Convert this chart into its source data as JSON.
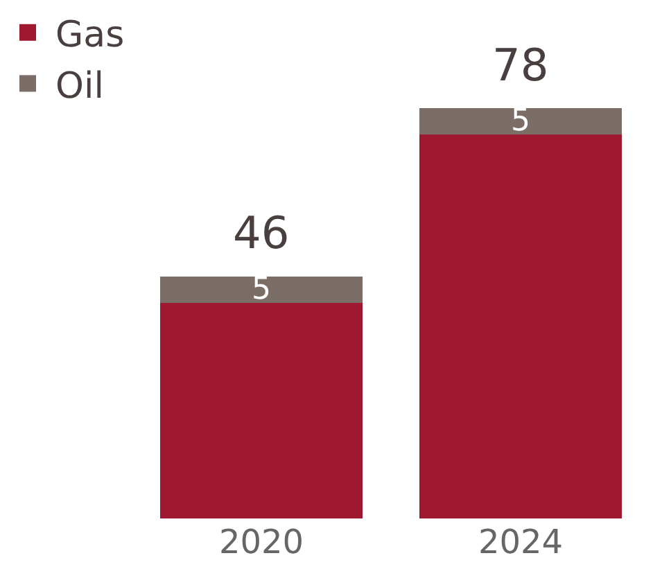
{
  "chart_data": {
    "type": "bar",
    "stacked": true,
    "categories": [
      "2020",
      "2024"
    ],
    "series": [
      {
        "name": "Gas",
        "color": "#9e1830",
        "values": [
          41,
          73
        ]
      },
      {
        "name": "Oil",
        "color": "#7b6e66",
        "values": [
          5,
          5
        ],
        "value_labels": [
          "5",
          "5"
        ]
      }
    ],
    "totals": [
      "46",
      "78"
    ],
    "legend": "top left"
  }
}
